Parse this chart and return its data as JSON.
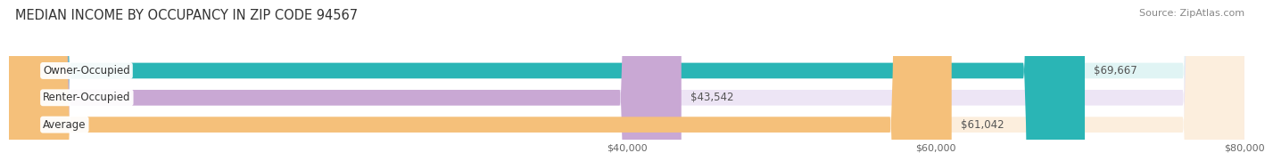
{
  "title": "MEDIAN INCOME BY OCCUPANCY IN ZIP CODE 94567",
  "source": "Source: ZipAtlas.com",
  "categories": [
    "Owner-Occupied",
    "Renter-Occupied",
    "Average"
  ],
  "values": [
    69667,
    43542,
    61042
  ],
  "bar_colors": [
    "#2ab5b5",
    "#c9a8d4",
    "#f5c07a"
  ],
  "bar_bg_colors": [
    "#e0f4f4",
    "#ede5f5",
    "#fceedd"
  ],
  "label_values": [
    "$69,667",
    "$43,542",
    "$61,042"
  ],
  "xlim": [
    0,
    80000
  ],
  "xticks": [
    40000,
    60000,
    80000
  ],
  "xtick_labels": [
    "$40,000",
    "$60,000",
    "$80,000"
  ],
  "title_fontsize": 10.5,
  "source_fontsize": 8,
  "bar_height": 0.58,
  "background_color": "#ffffff",
  "grid_color": "#cccccc"
}
